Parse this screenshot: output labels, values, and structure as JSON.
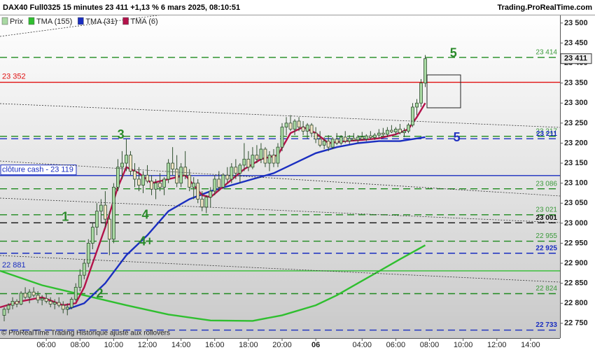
{
  "chart_data": {
    "type": "candlestick",
    "title": "DAX40 Full0325 15 minutes 23 411 +1,13 % 6 mars 2025, 08:10:51",
    "source": "Trading.ProRealTime.com",
    "footer": "© ProRealTime Trading  Historique ajusté aux rollovers",
    "price_name": "Prix",
    "up_color": "#a9d9a3",
    "down_color": "#f2e2c4",
    "ylim": [
      22713,
      23519
    ],
    "yticks": [
      {
        "value": 22750,
        "label": "22 750"
      },
      {
        "value": 22800,
        "label": "22 800"
      },
      {
        "value": 22850,
        "label": "22 850"
      },
      {
        "value": 22900,
        "label": "22 900"
      },
      {
        "value": 22950,
        "label": "22 950"
      },
      {
        "value": 23000,
        "label": "23 000"
      },
      {
        "value": 23050,
        "label": "23 050"
      },
      {
        "value": 23100,
        "label": "23 100"
      },
      {
        "value": 23150,
        "label": "23 150"
      },
      {
        "value": 23200,
        "label": "23 200"
      },
      {
        "value": 23250,
        "label": "23 250"
      },
      {
        "value": 23300,
        "label": "23 300"
      },
      {
        "value": 23350,
        "label": "23 350"
      },
      {
        "value": 23400,
        "label": "23 400"
      },
      {
        "value": 23450,
        "label": "23 450"
      },
      {
        "value": 23500,
        "label": "23 500"
      }
    ],
    "xlim": [
      0,
      133
    ],
    "xticks": [
      {
        "value": 11,
        "label": "06:00"
      },
      {
        "value": 19,
        "label": "08:00"
      },
      {
        "value": 27,
        "label": "10:00"
      },
      {
        "value": 35,
        "label": "12:00"
      },
      {
        "value": 43,
        "label": "14:00"
      },
      {
        "value": 51,
        "label": "16:00"
      },
      {
        "value": 59,
        "label": "18:00"
      },
      {
        "value": 67,
        "label": "20:00"
      },
      {
        "value": 75,
        "label": "06"
      },
      {
        "value": 86,
        "label": "04:00"
      },
      {
        "value": 94,
        "label": "06:00"
      },
      {
        "value": 102,
        "label": "08:00"
      },
      {
        "value": 110,
        "label": "10:00"
      },
      {
        "value": 118,
        "label": "12:00"
      },
      {
        "value": 126,
        "label": "14:00"
      }
    ],
    "candles": [
      [
        1,
        22770,
        22790,
        22755,
        22785
      ],
      [
        2,
        22785,
        22800,
        22775,
        22795
      ],
      [
        3,
        22795,
        22815,
        22785,
        22805
      ],
      [
        4,
        22805,
        22810,
        22790,
        22798
      ],
      [
        5,
        22798,
        22830,
        22795,
        22825
      ],
      [
        6,
        22825,
        22840,
        22810,
        22815
      ],
      [
        7,
        22815,
        22835,
        22800,
        22828
      ],
      [
        8,
        22828,
        22840,
        22815,
        22820
      ],
      [
        9,
        22820,
        22830,
        22800,
        22808
      ],
      [
        10,
        22808,
        22820,
        22795,
        22812
      ],
      [
        11,
        22812,
        22825,
        22800,
        22805
      ],
      [
        12,
        22805,
        22815,
        22790,
        22798
      ],
      [
        13,
        22798,
        22810,
        22785,
        22802
      ],
      [
        14,
        22802,
        22815,
        22790,
        22795
      ],
      [
        15,
        22795,
        22805,
        22775,
        22785
      ],
      [
        16,
        22785,
        22800,
        22770,
        22790
      ],
      [
        17,
        22790,
        22815,
        22785,
        22810
      ],
      [
        18,
        22810,
        22850,
        22805,
        22840
      ],
      [
        19,
        22840,
        22885,
        22830,
        22870
      ],
      [
        20,
        22870,
        22910,
        22860,
        22900
      ],
      [
        21,
        22900,
        22960,
        22890,
        22950
      ],
      [
        22,
        22950,
        23000,
        22935,
        22990
      ],
      [
        23,
        22990,
        23050,
        22970,
        23030
      ],
      [
        24,
        23030,
        23060,
        23000,
        23045
      ],
      [
        25,
        23045,
        23080,
        22990,
        23010
      ],
      [
        26,
        23010,
        23030,
        22920,
        22960
      ],
      [
        27,
        22960,
        23100,
        22950,
        23090
      ],
      [
        28,
        23090,
        23160,
        23080,
        23140
      ],
      [
        29,
        23140,
        23180,
        23110,
        23150
      ],
      [
        30,
        23150,
        23210,
        23130,
        23170
      ],
      [
        31,
        23170,
        23180,
        23120,
        23130
      ],
      [
        32,
        23130,
        23150,
        23090,
        23110
      ],
      [
        33,
        23110,
        23140,
        23080,
        23095
      ],
      [
        34,
        23095,
        23130,
        23075,
        23120
      ],
      [
        35,
        23120,
        23145,
        23100,
        23105
      ],
      [
        36,
        23105,
        23120,
        23070,
        23085
      ],
      [
        37,
        23085,
        23110,
        23060,
        23100
      ],
      [
        38,
        23100,
        23125,
        23080,
        23090
      ],
      [
        39,
        23090,
        23115,
        23070,
        23110
      ],
      [
        40,
        23110,
        23160,
        23100,
        23150
      ],
      [
        41,
        23150,
        23190,
        23120,
        23135
      ],
      [
        42,
        23135,
        23170,
        23090,
        23100
      ],
      [
        43,
        23100,
        23150,
        23090,
        23140
      ],
      [
        44,
        23140,
        23180,
        23110,
        23120
      ],
      [
        45,
        23120,
        23135,
        23080,
        23090
      ],
      [
        46,
        23090,
        23115,
        23060,
        23100
      ],
      [
        47,
        23100,
        23110,
        23050,
        23060
      ],
      [
        48,
        23060,
        23080,
        23030,
        23040
      ],
      [
        49,
        23040,
        23070,
        23025,
        23065
      ],
      [
        50,
        23065,
        23090,
        23040,
        23080
      ],
      [
        51,
        23080,
        23120,
        23070,
        23110
      ],
      [
        52,
        23110,
        23130,
        23080,
        23090
      ],
      [
        53,
        23090,
        23125,
        23085,
        23120
      ],
      [
        54,
        23120,
        23140,
        23100,
        23110
      ],
      [
        55,
        23110,
        23150,
        23100,
        23140
      ],
      [
        56,
        23140,
        23160,
        23110,
        23125
      ],
      [
        57,
        23125,
        23150,
        23100,
        23145
      ],
      [
        58,
        23145,
        23200,
        23130,
        23160
      ],
      [
        59,
        23160,
        23180,
        23130,
        23140
      ],
      [
        60,
        23140,
        23190,
        23135,
        23170
      ],
      [
        61,
        23170,
        23195,
        23150,
        23160
      ],
      [
        62,
        23160,
        23200,
        23150,
        23185
      ],
      [
        63,
        23185,
        23190,
        23140,
        23150
      ],
      [
        64,
        23150,
        23180,
        23130,
        23170
      ],
      [
        65,
        23170,
        23185,
        23140,
        23150
      ],
      [
        66,
        23150,
        23200,
        23140,
        23190
      ],
      [
        67,
        23190,
        23250,
        23180,
        23240
      ],
      [
        68,
        23240,
        23265,
        23220,
        23250
      ],
      [
        69,
        23250,
        23270,
        23230,
        23235
      ],
      [
        70,
        23235,
        23260,
        23220,
        23255
      ],
      [
        71,
        23255,
        23265,
        23230,
        23240
      ],
      [
        72,
        23240,
        23255,
        23220,
        23230
      ],
      [
        73,
        23230,
        23250,
        23210,
        23245
      ],
      [
        74,
        23245,
        23250,
        23215,
        23225
      ],
      [
        75,
        23225,
        23240,
        23200,
        23210
      ],
      [
        76,
        23210,
        23230,
        23190,
        23195
      ],
      [
        77,
        23195,
        23215,
        23185,
        23205
      ],
      [
        78,
        23205,
        23220,
        23180,
        23190
      ],
      [
        79,
        23190,
        23215,
        23185,
        23210
      ],
      [
        80,
        23210,
        23225,
        23195,
        23200
      ],
      [
        81,
        23200,
        23220,
        23195,
        23215
      ],
      [
        82,
        23215,
        23230,
        23200,
        23205
      ],
      [
        83,
        23205,
        23220,
        23198,
        23212
      ],
      [
        84,
        23212,
        23225,
        23205,
        23208
      ],
      [
        85,
        23208,
        23220,
        23200,
        23215
      ],
      [
        86,
        23215,
        23228,
        23208,
        23210
      ],
      [
        87,
        23210,
        23222,
        23205,
        23218
      ],
      [
        88,
        23218,
        23230,
        23210,
        23214
      ],
      [
        89,
        23214,
        23225,
        23208,
        23220
      ],
      [
        90,
        23220,
        23235,
        23212,
        23225
      ],
      [
        91,
        23225,
        23238,
        23218,
        23222
      ],
      [
        92,
        23222,
        23240,
        23215,
        23232
      ],
      [
        93,
        23232,
        23245,
        23225,
        23228
      ],
      [
        94,
        23228,
        23240,
        23220,
        23235
      ],
      [
        95,
        23235,
        23248,
        23222,
        23226
      ],
      [
        96,
        23226,
        23238,
        23215,
        23230
      ],
      [
        97,
        23230,
        23250,
        23225,
        23245
      ],
      [
        98,
        23245,
        23300,
        23240,
        23290
      ],
      [
        99,
        23290,
        23310,
        23270,
        23300
      ],
      [
        100,
        23300,
        23360,
        23290,
        23350
      ],
      [
        101,
        23350,
        23420,
        23340,
        23411
      ]
    ],
    "series": [
      {
        "name": "TMA (155)",
        "color": "#2fbf2f",
        "x": [
          0,
          10,
          20,
          30,
          40,
          50,
          60,
          67,
          75,
          80,
          85,
          90,
          95,
          101
        ],
        "values": [
          22881,
          22845,
          22820,
          22795,
          22772,
          22757,
          22756,
          22770,
          22795,
          22820,
          22850,
          22880,
          22910,
          22945
        ]
      },
      {
        "name": "TMA (31)",
        "color": "#1a2ec0",
        "x": [
          16,
          20,
          25,
          30,
          35,
          40,
          45,
          50,
          55,
          60,
          65,
          70,
          75,
          80,
          85,
          90,
          95,
          101
        ],
        "values": [
          22785,
          22800,
          22850,
          22920,
          22970,
          23030,
          23060,
          23080,
          23095,
          23110,
          23125,
          23150,
          23175,
          23190,
          23200,
          23205,
          23205,
          23215
        ]
      },
      {
        "name": "TMA (6)",
        "color": "#b3124a",
        "x": [
          0,
          5,
          10,
          15,
          18,
          20,
          22,
          25,
          28,
          30,
          33,
          36,
          40,
          44,
          48,
          50,
          54,
          58,
          62,
          66,
          69,
          72,
          75,
          78,
          82,
          86,
          90,
          94,
          97,
          99,
          101
        ],
        "values": [
          22790,
          22805,
          22815,
          22795,
          22800,
          22840,
          22900,
          22990,
          23090,
          23140,
          23125,
          23100,
          23110,
          23120,
          23070,
          23065,
          23100,
          23135,
          23160,
          23170,
          23225,
          23240,
          23225,
          23200,
          23205,
          23208,
          23212,
          23222,
          23235,
          23265,
          23300
        ]
      }
    ],
    "levels": [
      {
        "value": 23414,
        "label": "23 414",
        "side": "right",
        "color": "#1f8a1f",
        "style": "dashed"
      },
      {
        "value": 23352,
        "label": "23 352",
        "side": "left",
        "color": "#e01010",
        "style": "solid"
      },
      {
        "value": 23217,
        "label": "23 217",
        "side": "right",
        "color": "#1f8a1f",
        "style": "dashed"
      },
      {
        "value": 23211,
        "label": "23 211",
        "side": "right",
        "color": "#1a2ec0",
        "style": "dashed"
      },
      {
        "value": 23119,
        "label": "clôture cash - 23 119",
        "side": "left",
        "color": "#1a2ec0",
        "style": "solid"
      },
      {
        "value": 23086,
        "label": "23 086",
        "side": "right",
        "color": "#1f8a1f",
        "style": "dashed"
      },
      {
        "value": 23021,
        "label": "23 021",
        "side": "right",
        "color": "#1f8a1f",
        "style": "dashed"
      },
      {
        "value": 23001,
        "label": "23 001",
        "side": "right",
        "color": "#111111",
        "style": "dashed"
      },
      {
        "value": 22955,
        "label": "22 955",
        "side": "right",
        "color": "#1f8a1f",
        "style": "dashed"
      },
      {
        "value": 22925,
        "label": "22 925",
        "side": "right",
        "color": "#1a2ec0",
        "style": "dashed"
      },
      {
        "value": 22881,
        "label": "22 881",
        "side": "left",
        "color": "#2fbf2f",
        "style": "solid"
      },
      {
        "value": 22824,
        "label": "22 824",
        "side": "right",
        "color": "#1f8a1f",
        "style": "dashed"
      },
      {
        "value": 22733,
        "label": "22 733",
        "side": "right",
        "color": "#1a2ec0",
        "style": "dashed"
      }
    ],
    "last": {
      "value": 23411,
      "label": "23 411"
    },
    "annotations": [
      {
        "text": "1",
        "x": 15.5,
        "y": 23014,
        "color": "#2a8a2a"
      },
      {
        "text": "2",
        "x": 23.7,
        "y": 22823,
        "color": "#2a8a2a"
      },
      {
        "text": "3",
        "x": 28.7,
        "y": 23220,
        "color": "#2a8a2a"
      },
      {
        "text": "4",
        "x": 34.5,
        "y": 23019,
        "color": "#2a8a2a"
      },
      {
        "text": "4+",
        "x": 34.7,
        "y": 22953,
        "color": "#2a8a2a"
      },
      {
        "text": "5",
        "x": 107.7,
        "y": 23423,
        "color": "#2a8a2a"
      },
      {
        "text": "5",
        "x": 108.5,
        "y": 23213,
        "color": "#2030c0"
      }
    ]
  }
}
